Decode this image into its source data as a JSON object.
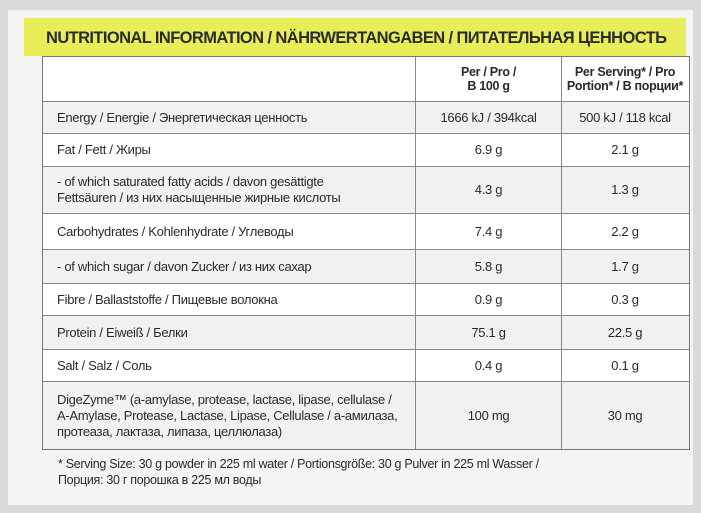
{
  "title": "NUTRITIONAL INFORMATION / NÄHRWERTANGABEN / ПИТАТЕЛЬНАЯ ЦЕННОСТЬ",
  "table": {
    "columns": [
      [
        "Per / Pro /",
        "B 100 g"
      ],
      [
        "Per Serving* / Pro",
        "Portion* / В порции*"
      ]
    ],
    "rows": [
      [
        [
          "Energy / Energie / Энергетическая ценность"
        ],
        [
          "1666 kJ / 394kcal"
        ],
        [
          "500 kJ / 118 kcal"
        ]
      ],
      [
        [
          "Fat / Fett / Жиры"
        ],
        [
          "6.9 g"
        ],
        [
          "2.1 g"
        ]
      ],
      [
        [
          "- of which saturated fatty acids / davon gesättigte",
          "Fettsäuren / из них насыщенные жирные кислоты"
        ],
        [
          "4.3 g"
        ],
        [
          "1.3 g"
        ]
      ],
      [
        [
          "Carbohydrates / Kohlenhydrate / Углеводы"
        ],
        [
          "7.4 g"
        ],
        [
          "2.2 g"
        ]
      ],
      [
        [
          "- of which sugar / davon Zucker / из них сахар"
        ],
        [
          "5.8 g"
        ],
        [
          "1.7 g"
        ]
      ],
      [
        [
          "Fibre / Ballaststoffe / Пищевые волокна"
        ],
        [
          "0.9 g"
        ],
        [
          "0.3 g"
        ]
      ],
      [
        [
          "Protein / Eiweiß / Белки"
        ],
        [
          "75.1 g"
        ],
        [
          "22.5 g"
        ]
      ],
      [
        [
          "Salt / Salz / Соль"
        ],
        [
          "0.4 g"
        ],
        [
          "0.1 g"
        ]
      ],
      [
        [
          "DigeZyme™ (a-amylase, protease, lactase, lipase, cellulase /",
          "A-Amylase, Protease, Lactase, Lipase, Cellulase / а-амилаза,",
          "протеаза, лактаза, липаза, целлюлаза)"
        ],
        [
          "100 mg"
        ],
        [
          "30 mg"
        ]
      ]
    ]
  },
  "footnote": [
    "* Serving Size: 30 g powder in 225 ml water / Portionsgröße: 30 g Pulver in 225 ml Wasser /",
    "Порция: 30 г порошка в 225 мл воды"
  ]
}
